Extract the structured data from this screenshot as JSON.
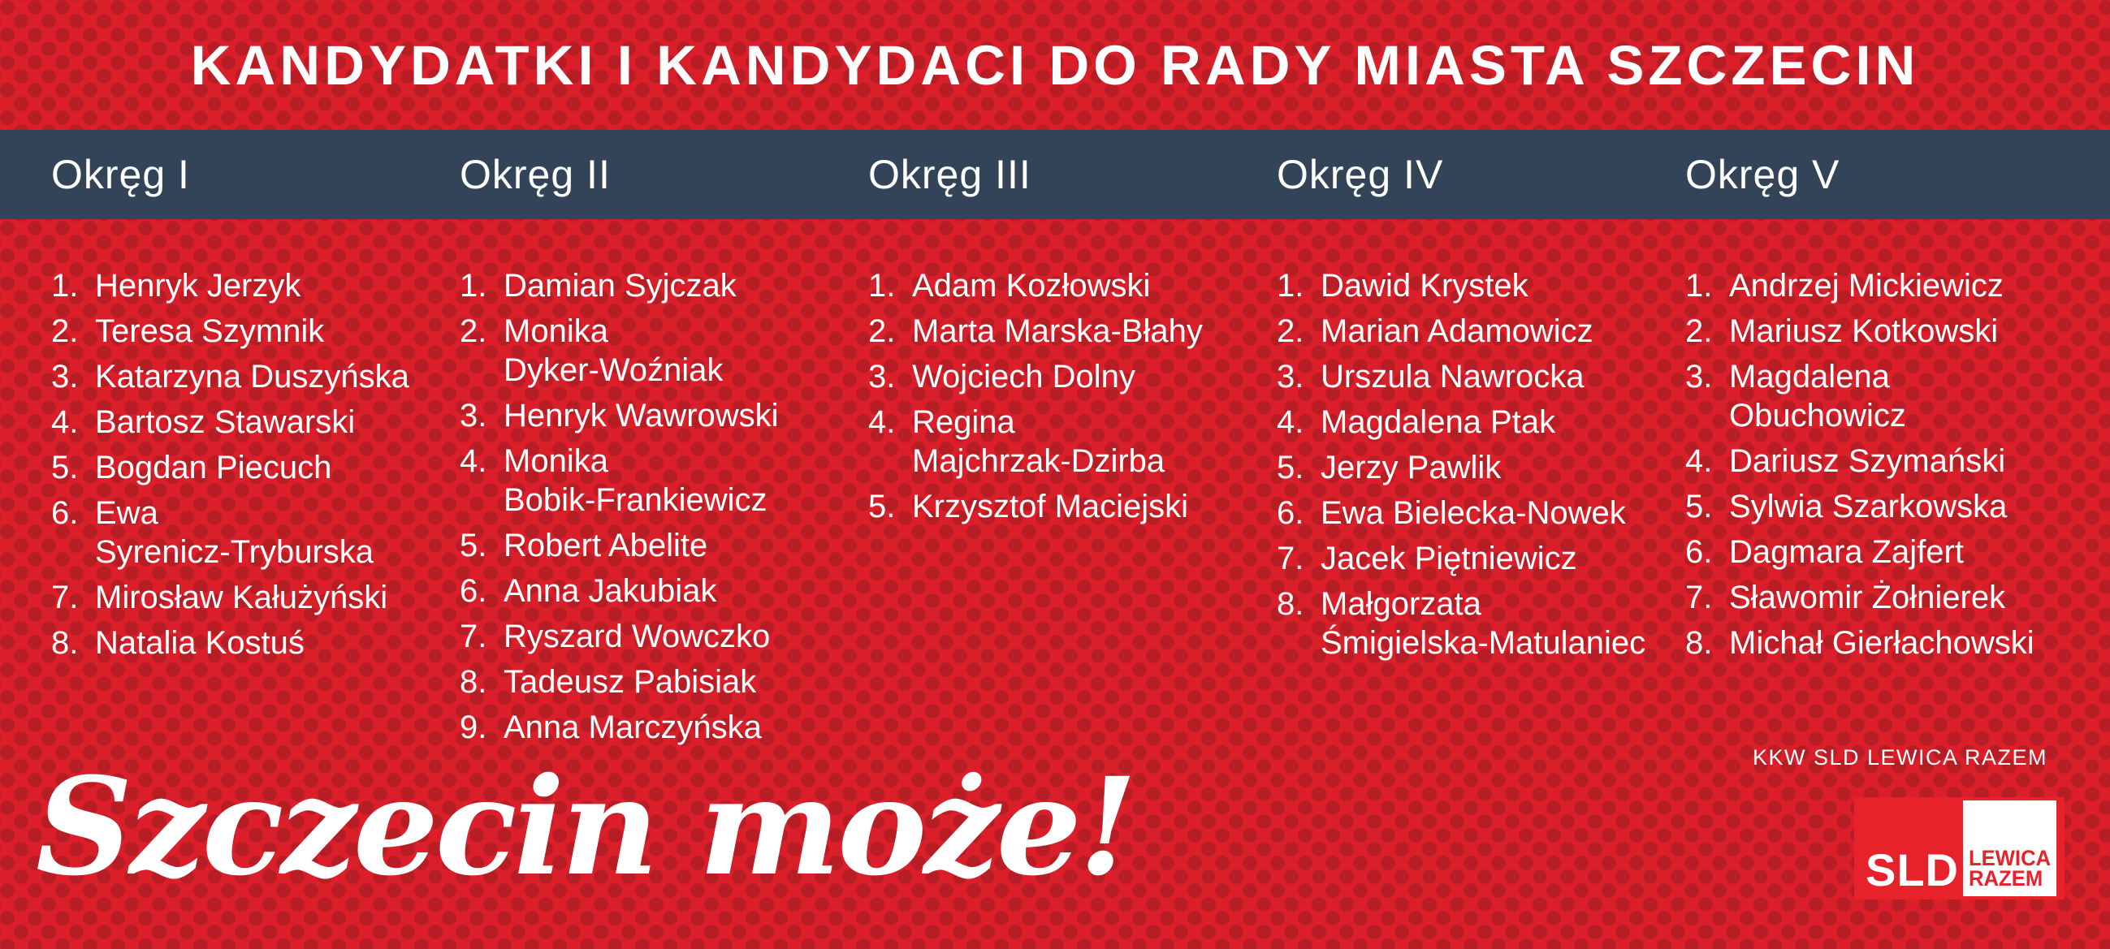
{
  "header": {
    "title": "KANDYDATKI I KANDYDACI DO RADY MIASTA SZCZECIN"
  },
  "districts": [
    {
      "label": "Okręg I",
      "candidates": [
        {
          "num": "1.",
          "name": "Henryk Jerzyk"
        },
        {
          "num": "2.",
          "name": "Teresa Szymnik"
        },
        {
          "num": "3.",
          "name": "Katarzyna Duszyńska"
        },
        {
          "num": "4.",
          "name": "Bartosz Stawarski"
        },
        {
          "num": "5.",
          "name": "Bogdan Piecuch"
        },
        {
          "num": "6.",
          "name": "Ewa\nSyrenicz-Tryburska"
        },
        {
          "num": "7.",
          "name": "Mirosław Kałużyński"
        },
        {
          "num": "8.",
          "name": "Natalia Kostuś"
        }
      ]
    },
    {
      "label": "Okręg II",
      "candidates": [
        {
          "num": "1.",
          "name": "Damian Syjczak"
        },
        {
          "num": "2.",
          "name": "Monika\nDyker-Woźniak"
        },
        {
          "num": "3.",
          "name": "Henryk Wawrowski"
        },
        {
          "num": "4.",
          "name": "Monika\nBobik-Frankiewicz"
        },
        {
          "num": "5.",
          "name": "Robert Abelite"
        },
        {
          "num": "6.",
          "name": "Anna Jakubiak"
        },
        {
          "num": "7.",
          "name": "Ryszard Wowczko"
        },
        {
          "num": "8.",
          "name": "Tadeusz Pabisiak"
        },
        {
          "num": "9.",
          "name": "Anna Marczyńska"
        }
      ]
    },
    {
      "label": "Okręg III",
      "candidates": [
        {
          "num": "1.",
          "name": "Adam Kozłowski"
        },
        {
          "num": "2.",
          "name": "Marta Marska-Błahy"
        },
        {
          "num": "3.",
          "name": "Wojciech Dolny"
        },
        {
          "num": "4.",
          "name": "Regina\nMajchrzak-Dzirba"
        },
        {
          "num": "5.",
          "name": "Krzysztof Maciejski"
        }
      ]
    },
    {
      "label": "Okręg IV",
      "candidates": [
        {
          "num": "1.",
          "name": "Dawid Krystek"
        },
        {
          "num": "2.",
          "name": "Marian Adamowicz"
        },
        {
          "num": "3.",
          "name": "Urszula Nawrocka"
        },
        {
          "num": "4.",
          "name": "Magdalena Ptak"
        },
        {
          "num": "5.",
          "name": "Jerzy Pawlik"
        },
        {
          "num": "6.",
          "name": "Ewa Bielecka-Nowek"
        },
        {
          "num": "7.",
          "name": "Jacek Piętniewicz"
        },
        {
          "num": "8.",
          "name": "Małgorzata\nŚmigielska-Matulaniec"
        }
      ]
    },
    {
      "label": "Okręg V",
      "candidates": [
        {
          "num": "1.",
          "name": "Andrzej Mickiewicz"
        },
        {
          "num": "2.",
          "name": "Mariusz Kotkowski"
        },
        {
          "num": "3.",
          "name": "Magdalena\nObuchowicz"
        },
        {
          "num": "4.",
          "name": "Dariusz Szymański"
        },
        {
          "num": "5.",
          "name": "Sylwia Szarkowska"
        },
        {
          "num": "6.",
          "name": "Dagmara Zajfert"
        },
        {
          "num": "7.",
          "name": "Sławomir Żołnierek"
        },
        {
          "num": "8.",
          "name": "Michał Gierłachowski"
        }
      ]
    }
  ],
  "footer": {
    "slogan": "Szczecin może!",
    "committee": "KKW SLD LEWICA RAZEM",
    "logo": {
      "sld": "SLD",
      "lewica": "LEWICA",
      "razem": "RAZEM"
    }
  },
  "colors": {
    "background_red": "#db1f2a",
    "pattern_red": "#b71d25",
    "navy": "#334459",
    "logo_red": "#e7222b",
    "text_white": "#ffffff"
  }
}
